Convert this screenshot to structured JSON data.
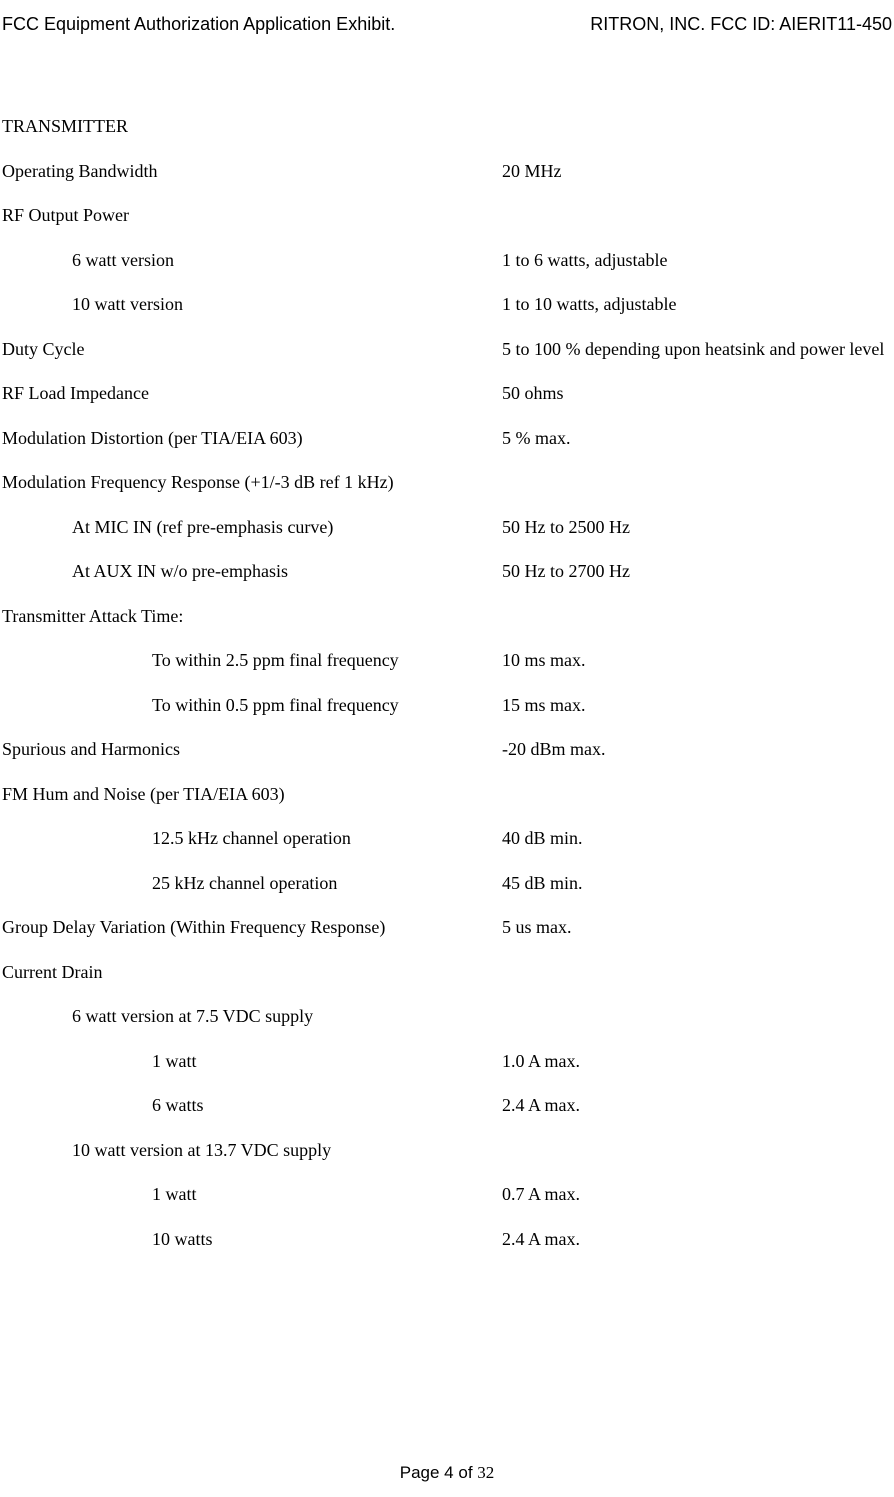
{
  "header": {
    "left": "FCC Equipment Authorization Application Exhibit.",
    "right_prefix": "RITRON, INC.  FCC ID:  ",
    "right_id": "AIERIT11-450"
  },
  "section_title": "TRANSMITTER",
  "specs": [
    {
      "label": "Operating Bandwidth",
      "value": "20 MHz",
      "indent": 0
    },
    {
      "label": "RF Output Power",
      "value": "",
      "indent": 0
    },
    {
      "label": "6 watt version",
      "value": "1 to 6 watts, adjustable",
      "indent": 1
    },
    {
      "label": "10 watt version",
      "value": "1 to 10 watts, adjustable",
      "indent": 1
    },
    {
      "label": "Duty Cycle",
      "value": "5 to 100 % depending upon heatsink and power level",
      "indent": 0
    },
    {
      "label": "RF Load Impedance",
      "value": "50 ohms",
      "indent": 0
    },
    {
      "label": "Modulation Distortion (per TIA/EIA 603)",
      "value": "5 % max.",
      "indent": 0
    },
    {
      "label": "Modulation Frequency Response (+1/-3 dB ref 1 kHz)",
      "value": "",
      "indent": 0
    },
    {
      "label": "At MIC IN (ref pre-emphasis curve)",
      "value": "50 Hz to 2500 Hz",
      "indent": 1
    },
    {
      "label": "At AUX IN w/o pre-emphasis",
      "value": "50 Hz to 2700 Hz",
      "indent": 1
    },
    {
      "label": "Transmitter Attack Time:",
      "value": "",
      "indent": 0
    },
    {
      "label": "To within 2.5 ppm final frequency",
      "value": "10 ms max.",
      "indent": 2
    },
    {
      "label": "To within 0.5 ppm final frequency",
      "value": "15 ms max.",
      "indent": 2
    },
    {
      "label": "Spurious and Harmonics",
      "value": "-20 dBm max.",
      "indent": 0
    },
    {
      "label": "FM Hum and Noise (per TIA/EIA 603)",
      "value": "",
      "indent": 0
    },
    {
      "label": "12.5 kHz channel operation",
      "value": "40 dB min.",
      "indent": 2
    },
    {
      "label": "25 kHz channel operation",
      "value": "45 dB min.",
      "indent": 2
    },
    {
      "label": "Group Delay Variation (Within Frequency Response)",
      "value": "5 us max.",
      "indent": 0
    },
    {
      "label": "Current Drain",
      "value": "",
      "indent": 0
    },
    {
      "label": "6 watt version at 7.5 VDC supply",
      "value": "",
      "indent": 1
    },
    {
      "label": "1 watt",
      "value": "1.0 A max.",
      "indent": 2
    },
    {
      "label": "6 watts",
      "value": "2.4 A max.",
      "indent": 2
    },
    {
      "label": "10 watt version at 13.7 VDC supply",
      "value": "",
      "indent": 1
    },
    {
      "label": "1 watt",
      "value": "0.7 A max.",
      "indent": 2
    },
    {
      "label": "10 watts",
      "value": "2.4 A max.",
      "indent": 2
    }
  ],
  "footer": {
    "prefix": "Page ",
    "current": "4",
    "of": " of ",
    "total": "32"
  }
}
